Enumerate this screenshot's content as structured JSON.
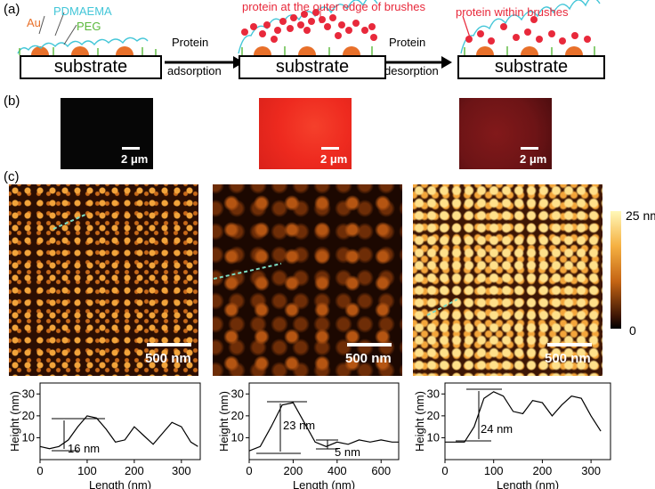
{
  "panel_a": {
    "label": "(a)",
    "legend": {
      "au": "Au",
      "pdmaema": "PDMAEMA",
      "peg": "PEG"
    },
    "substrate": "substrate",
    "arrow1": [
      "Protein",
      "adsorption"
    ],
    "arrow2": [
      "Protein",
      "desorption"
    ],
    "protein_outer": "protein at the outer edge of brushes",
    "protein_within": "protein within brushes",
    "colors": {
      "protein": "#e8293b",
      "brush": "#43c6d8",
      "peg": "#59b83a",
      "au": "#e8702a"
    }
  },
  "panel_b": {
    "label": "(b)",
    "scale": "2 μm",
    "images": [
      {
        "name": "before",
        "color": "#060606"
      },
      {
        "name": "adsorbed",
        "color": "#ee2a1f"
      },
      {
        "name": "desorbed",
        "color": "#6d1416"
      }
    ]
  },
  "panel_c": {
    "label": "(c)",
    "scale": "500 nm",
    "colorbar": {
      "max": "25 nm",
      "min": "0"
    }
  },
  "chart_data": [
    {
      "type": "line",
      "xlabel": "Length (nm)",
      "ylabel": "Height (nm)",
      "xlim": [
        0,
        340
      ],
      "ylim": [
        0,
        35
      ],
      "xticks": [
        "0",
        "100",
        "200",
        "300"
      ],
      "yticks": [
        "10",
        "20",
        "30"
      ],
      "annotation": "16 nm",
      "x": [
        0,
        20,
        40,
        60,
        80,
        100,
        120,
        140,
        160,
        180,
        200,
        220,
        240,
        260,
        280,
        300,
        320,
        335
      ],
      "y": [
        6,
        5,
        6,
        9,
        15,
        20,
        19,
        14,
        8,
        9,
        15,
        11,
        7,
        12,
        17,
        15,
        8,
        6
      ]
    },
    {
      "type": "line",
      "xlabel": "Length (nm)",
      "ylabel": "Height (nm)",
      "xlim": [
        0,
        680
      ],
      "ylim": [
        0,
        35
      ],
      "xticks": [
        "0",
        "200",
        "400",
        "600"
      ],
      "yticks": [
        "10",
        "20",
        "30"
      ],
      "annotations": [
        "23 nm",
        "5 nm"
      ],
      "x": [
        0,
        50,
        100,
        150,
        200,
        250,
        300,
        350,
        400,
        450,
        500,
        550,
        600,
        650,
        680
      ],
      "y": [
        4,
        6,
        15,
        25,
        26,
        17,
        8,
        6,
        8,
        7,
        9,
        8,
        9,
        8,
        8
      ]
    },
    {
      "type": "line",
      "xlabel": "Length (nm)",
      "ylabel": "Height (nm)",
      "xlim": [
        0,
        340
      ],
      "ylim": [
        0,
        35
      ],
      "xticks": [
        "0",
        "100",
        "200",
        "300"
      ],
      "yticks": [
        "10",
        "20",
        "30"
      ],
      "annotation": "24 nm",
      "x": [
        0,
        20,
        40,
        60,
        80,
        100,
        120,
        140,
        160,
        180,
        200,
        220,
        240,
        260,
        280,
        300,
        320
      ],
      "y": [
        8,
        8,
        8,
        15,
        28,
        31,
        29,
        22,
        21,
        27,
        26,
        20,
        25,
        29,
        28,
        20,
        13
      ]
    }
  ]
}
